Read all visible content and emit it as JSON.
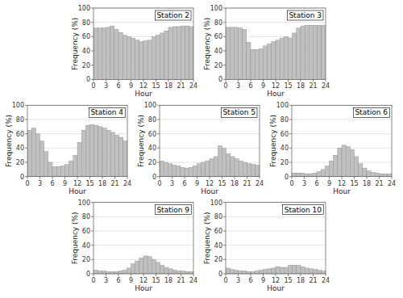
{
  "chart_data": [
    {
      "type": "histogram",
      "title": "Station 2",
      "xlabel": "Hour",
      "ylabel": "Frequency (%)",
      "bins": [
        0,
        1,
        2,
        3,
        4,
        5,
        6,
        7,
        8,
        9,
        10,
        11,
        12,
        13,
        14,
        15,
        16,
        17,
        18,
        19,
        20,
        21,
        22,
        23,
        24
      ],
      "values": [
        72,
        72,
        72,
        73,
        75,
        70,
        66,
        62,
        60,
        58,
        55,
        53,
        54,
        55,
        60,
        62,
        65,
        68,
        73,
        74,
        74,
        75,
        75,
        74
      ],
      "color": "#c0c0c0",
      "xlim": [
        0,
        24
      ],
      "xticks": [
        0,
        3,
        6,
        9,
        12,
        15,
        18,
        21,
        24
      ],
      "ylim": [
        0,
        100
      ],
      "yticks": [
        0,
        20,
        40,
        60,
        80,
        100
      ],
      "grid": true
    },
    {
      "type": "histogram",
      "title": "Station 3",
      "xlabel": "Hour",
      "ylabel": "Frequency (%)",
      "bins": [
        0,
        1,
        2,
        3,
        4,
        5,
        6,
        7,
        8,
        9,
        10,
        11,
        12,
        13,
        14,
        15,
        16,
        17,
        18,
        19,
        20,
        21,
        22,
        23,
        24
      ],
      "values": [
        73,
        73,
        73,
        72,
        70,
        52,
        42,
        42,
        43,
        47,
        50,
        53,
        55,
        58,
        60,
        58,
        65,
        72,
        75,
        76,
        76,
        76,
        76,
        76
      ],
      "color": "#c0c0c0",
      "xlim": [
        0,
        24
      ],
      "xticks": [
        0,
        3,
        6,
        9,
        12,
        15,
        18,
        21,
        24
      ],
      "ylim": [
        0,
        100
      ],
      "yticks": [
        0,
        20,
        40,
        60,
        80,
        100
      ],
      "grid": true
    },
    {
      "type": "histogram",
      "title": "Station 4",
      "xlabel": "Hour",
      "ylabel": "Frequency (%)",
      "bins": [
        0,
        1,
        2,
        3,
        4,
        5,
        6,
        7,
        8,
        9,
        10,
        11,
        12,
        13,
        14,
        15,
        16,
        17,
        18,
        19,
        20,
        21,
        22,
        23,
        24
      ],
      "values": [
        65,
        68,
        60,
        50,
        35,
        20,
        14,
        14,
        15,
        17,
        22,
        30,
        48,
        65,
        72,
        73,
        72,
        70,
        68,
        65,
        62,
        58,
        55,
        50
      ],
      "color": "#c0c0c0",
      "xlim": [
        0,
        24
      ],
      "xticks": [
        0,
        3,
        6,
        9,
        12,
        15,
        18,
        21,
        24
      ],
      "ylim": [
        0,
        100
      ],
      "yticks": [
        0,
        20,
        40,
        60,
        80,
        100
      ],
      "grid": true
    },
    {
      "type": "histogram",
      "title": "Station 5",
      "xlabel": "Hour",
      "ylabel": "Frequency (%)",
      "bins": [
        0,
        1,
        2,
        3,
        4,
        5,
        6,
        7,
        8,
        9,
        10,
        11,
        12,
        13,
        14,
        15,
        16,
        17,
        18,
        19,
        20,
        21,
        22,
        23,
        24
      ],
      "values": [
        22,
        20,
        18,
        16,
        15,
        13,
        12,
        13,
        15,
        18,
        20,
        22,
        25,
        28,
        43,
        40,
        32,
        28,
        25,
        22,
        20,
        18,
        17,
        16
      ],
      "color": "#c0c0c0",
      "xlim": [
        0,
        24
      ],
      "xticks": [
        0,
        3,
        6,
        9,
        12,
        15,
        18,
        21,
        24
      ],
      "ylim": [
        0,
        100
      ],
      "yticks": [
        0,
        20,
        40,
        60,
        80,
        100
      ],
      "grid": true
    },
    {
      "type": "histogram",
      "title": "Station 6",
      "xlabel": "Hour",
      "ylabel": "Frequency (%)",
      "bins": [
        0,
        1,
        2,
        3,
        4,
        5,
        6,
        7,
        8,
        9,
        10,
        11,
        12,
        13,
        14,
        15,
        16,
        17,
        18,
        19,
        20,
        21,
        22,
        23,
        24
      ],
      "values": [
        5,
        5,
        5,
        4,
        4,
        5,
        7,
        10,
        15,
        22,
        30,
        40,
        44,
        42,
        38,
        28,
        18,
        12,
        8,
        6,
        5,
        4,
        4,
        4
      ],
      "color": "#c0c0c0",
      "xlim": [
        0,
        24
      ],
      "xticks": [
        0,
        3,
        6,
        9,
        12,
        15,
        18,
        21,
        24
      ],
      "ylim": [
        0,
        100
      ],
      "yticks": [
        0,
        20,
        40,
        60,
        80,
        100
      ],
      "grid": true
    },
    {
      "type": "histogram",
      "title": "Station 9",
      "xlabel": "Hour",
      "ylabel": "Frequency (%)",
      "bins": [
        0,
        1,
        2,
        3,
        4,
        5,
        6,
        7,
        8,
        9,
        10,
        11,
        12,
        13,
        14,
        15,
        16,
        17,
        18,
        19,
        20,
        21,
        22,
        23,
        24
      ],
      "values": [
        5,
        4,
        4,
        3,
        3,
        3,
        4,
        5,
        8,
        14,
        18,
        22,
        25,
        24,
        20,
        16,
        12,
        9,
        7,
        5,
        4,
        4,
        3,
        3
      ],
      "color": "#c0c0c0",
      "xlim": [
        0,
        24
      ],
      "xticks": [
        0,
        3,
        6,
        9,
        12,
        15,
        18,
        21,
        24
      ],
      "ylim": [
        0,
        100
      ],
      "yticks": [
        0,
        20,
        40,
        60,
        80,
        100
      ],
      "grid": true
    },
    {
      "type": "histogram",
      "title": "Station 10",
      "xlabel": "Hour",
      "ylabel": "Frequency (%)",
      "bins": [
        0,
        1,
        2,
        3,
        4,
        5,
        6,
        7,
        8,
        9,
        10,
        11,
        12,
        13,
        14,
        15,
        16,
        17,
        18,
        19,
        20,
        21,
        22,
        23,
        24
      ],
      "values": [
        8,
        6,
        5,
        4,
        4,
        3,
        3,
        4,
        5,
        6,
        7,
        8,
        10,
        9,
        9,
        12,
        12,
        12,
        10,
        8,
        7,
        6,
        5,
        4
      ],
      "color": "#c0c0c0",
      "xlim": [
        0,
        24
      ],
      "xticks": [
        0,
        3,
        6,
        9,
        12,
        15,
        18,
        21,
        24
      ],
      "ylim": [
        0,
        100
      ],
      "yticks": [
        0,
        20,
        40,
        60,
        80,
        100
      ],
      "grid": true
    }
  ]
}
